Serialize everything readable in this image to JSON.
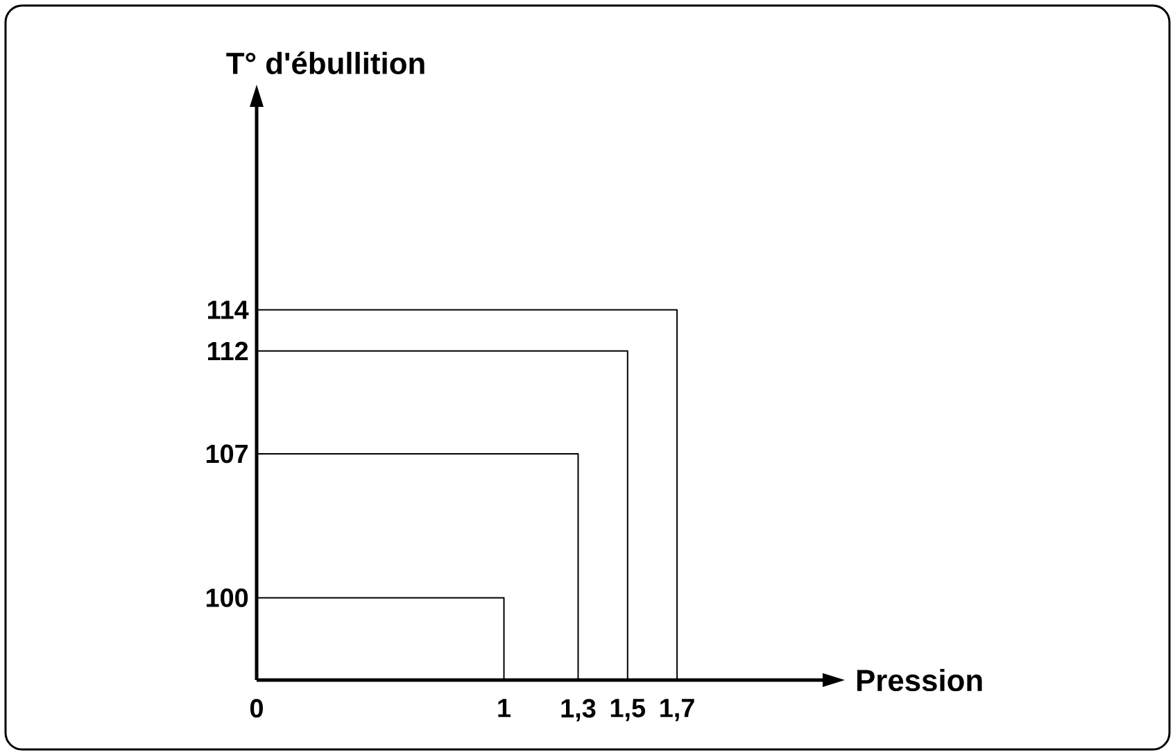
{
  "chart_data": {
    "type": "line",
    "marker": "none",
    "xlabel": "Pression",
    "ylabel": "T° d'ébullition",
    "series": [
      {
        "color": "#000000",
        "x": [
          0,
          1,
          1
        ],
        "values": [
          100,
          100,
          96
        ]
      },
      {
        "color": "#000000",
        "x": [
          0,
          1.3,
          1.3
        ],
        "values": [
          107,
          107,
          96
        ]
      },
      {
        "color": "#000000",
        "x": [
          0,
          1.5,
          1.5
        ],
        "values": [
          112,
          112,
          96
        ]
      },
      {
        "color": "#000000",
        "x": [
          0,
          1.7,
          1.7
        ],
        "values": [
          114,
          114,
          96
        ]
      }
    ],
    "xlim": [
      0,
      2.3
    ],
    "ylim": [
      96,
      124
    ],
    "xticks": [
      {
        "value": 0,
        "label": "0"
      },
      {
        "value": 1,
        "label": "1"
      },
      {
        "value": 1.3,
        "label": "1,3"
      },
      {
        "value": 1.5,
        "label": "1,5"
      },
      {
        "value": 1.7,
        "label": "1,7"
      }
    ],
    "yticks": [
      100,
      107,
      112,
      114
    ],
    "grid": false
  }
}
